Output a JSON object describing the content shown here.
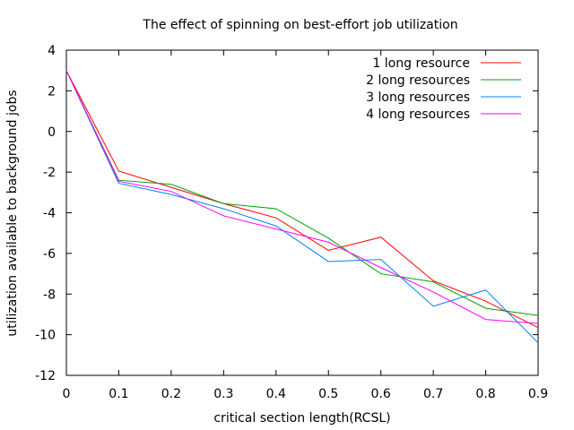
{
  "chart_data": {
    "type": "line",
    "title": "The effect of spinning on best-effort job utilization",
    "xlabel": "critical section length(RCSL)",
    "ylabel": "utilization available to background jobs",
    "x": [
      0,
      0.1,
      0.2,
      0.3,
      0.4,
      0.5,
      0.6,
      0.7,
      0.8,
      0.9
    ],
    "xlim": [
      0,
      0.9
    ],
    "ylim": [
      -12,
      4
    ],
    "xticks": [
      "0",
      "0.1",
      "0.2",
      "0.3",
      "0.4",
      "0.5",
      "0.6",
      "0.7",
      "0.8",
      "0.9"
    ],
    "yticks": [
      "-12",
      "-10",
      "-8",
      "-6",
      "-4",
      "-2",
      "0",
      "2",
      "4"
    ],
    "legend_position": "top-right",
    "grid": false,
    "series": [
      {
        "name": "1 long resource",
        "color": "#ff0000",
        "values": [
          3.0,
          -1.95,
          -2.75,
          -3.55,
          -4.25,
          -5.85,
          -5.2,
          -7.35,
          -8.35,
          -9.65
        ]
      },
      {
        "name": "2 long resources",
        "color": "#00a000",
        "values": [
          3.0,
          -2.4,
          -2.6,
          -3.55,
          -3.8,
          -5.25,
          -7.0,
          -7.4,
          -8.7,
          -9.05
        ]
      },
      {
        "name": "3 long resources",
        "color": "#0080ff",
        "values": [
          3.0,
          -2.55,
          -3.1,
          -3.8,
          -4.65,
          -6.4,
          -6.3,
          -8.6,
          -7.8,
          -10.4
        ]
      },
      {
        "name": "4 long resources",
        "color": "#ff00ff",
        "values": [
          3.0,
          -2.45,
          -2.95,
          -4.15,
          -4.8,
          -5.45,
          -6.7,
          -7.9,
          -9.25,
          -9.45
        ]
      }
    ]
  }
}
